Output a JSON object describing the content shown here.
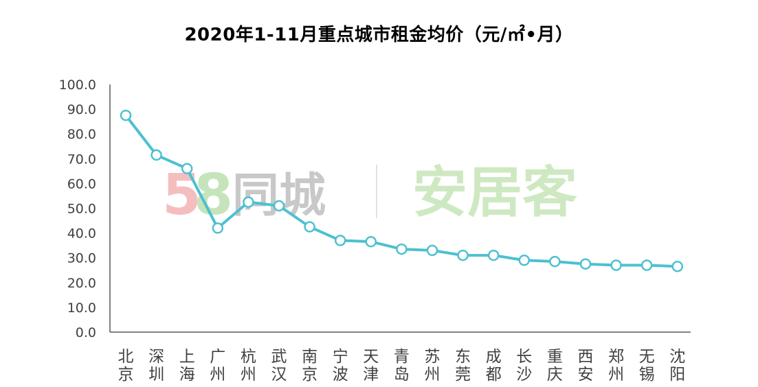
{
  "chart_data": {
    "type": "line",
    "title": "2020年1-11月重点城市租金均价（元/㎡•月）",
    "categories": [
      "北京",
      "深圳",
      "上海",
      "广州",
      "杭州",
      "武汉",
      "南京",
      "宁波",
      "天津",
      "青岛",
      "苏州",
      "东莞",
      "成都",
      "长沙",
      "重庆",
      "西安",
      "郑州",
      "无锡",
      "沈阳"
    ],
    "series": [
      {
        "values": [
          87.5,
          71.5,
          66.0,
          42.0,
          52.5,
          51.0,
          42.5,
          37.0,
          36.5,
          33.5,
          33.0,
          31.0,
          31.0,
          29.0,
          28.5,
          27.5,
          27.0,
          27.0,
          26.5
        ]
      }
    ],
    "ylim": [
      0,
      100
    ],
    "yticks": [
      "0.0",
      "10.0",
      "20.0",
      "30.0",
      "40.0",
      "50.0",
      "60.0",
      "70.0",
      "80.0",
      "90.0",
      "100.0"
    ],
    "xlabel": "",
    "ylabel": "",
    "grid": false,
    "colors": {
      "line": "#4DC0D0",
      "axis": "#595959",
      "marker_fill": "#ffffff"
    }
  },
  "watermark": {
    "logo_58": "58",
    "text_tongcheng": "同城",
    "text_anjuke": "安居客",
    "colors": {
      "five": "#f4b3b3",
      "eight": "#bde0b0",
      "tongcheng": "#bfbfbf",
      "anjuke": "#c6e6b8",
      "divider": "#dddddd"
    }
  }
}
